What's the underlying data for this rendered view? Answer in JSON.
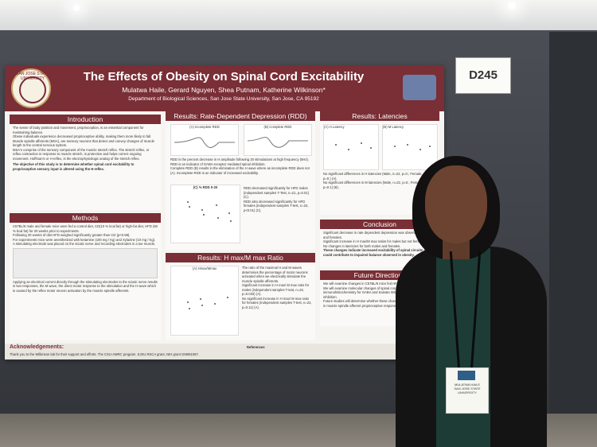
{
  "booth_sign": "D245",
  "poster": {
    "logo_text": "SAN JOSE STATE UNIVERSITY",
    "title": "The Effects of Obesity on Spinal Cord Excitability",
    "authors": "Mulatwa Haile, Gerard Nguyen, Shea Putnam, Katherine Wilkinson*",
    "department": "Department of Biological Sciences, San Jose State University, San Jose, CA 95192",
    "sections": {
      "introduction": "Introduction",
      "methods": "Methods",
      "rdd": "Results: Rate-Dependent Depression (RDD)",
      "hmax": "Results: H max/M max Ratio",
      "latencies": "Results: Latencies",
      "conclusion": "Conclusion",
      "future": "Future Directions",
      "ack": "Acknowledgements:"
    },
    "intro_text": [
      "The sense of body position and movement, proprioception, is an essential component for maintaining balance.",
      "Obese individuals experience decreased proprioceptive ability, making them more likely to fall.",
      "Muscle spindle afferents (MSA), are sensory neurons that detect and convey changes of muscle length to the central nervous system.",
      "MSA's comprise of the sensory component of the muscle stretch reflex. The stretch reflex, or reflex contraction in response to muscle stretch, is protective and helps correct ongoing movement. Hoffman's or H-reflex, is the electrophysiologic analog of the stretch reflex."
    ],
    "objective": "The objective of this study is to determine whether spinal cord excitability to proprioceptive sensory input is altered using the H-reflex.",
    "methods_text": [
      "C57BL/6 male and female mice were fed a control diet, CD(10 % kcal fat) or high-fat diet, HFD (60 % kcal fat) for 20 weeks prior to experiments.",
      "Following 20 weeks of diet HFD weighed significantly greater than CD (p<0.98).",
      "For experiments mice were anesthetized with ketamine (100 mg / Kg) and Xylazine (10 mg / Kg). A stimulating electrode was placed on the sciatic nerve and recording electrodes in a toe muscle.",
      "Applying an electrical current directly through the stimulating electrodes to the sciatic nerve results in two responses, the M wave, the direct motor response to the stimulation and the H wave which is caused by the reflex motor neuron activation by the muscle spindle afferents."
    ],
    "rdd_plot_labels": [
      "(A) Incomplete RDD",
      "(B) Complete RDD"
    ],
    "rdd_text": [
      "RDD is the percent decrease in H amplitude following 20 stimulations at high frequency (5Hz).",
      "RDD is an indicator of GABA-receptor mediated spinal inhibition.",
      "Complete RDD (B) results in the elimination of the H wave where as incomplete RDD does not (A). Incomplete RDD is an indicator of increased excitability."
    ],
    "rdd_chart_label": "(C) % RDD 0-20",
    "rdd_bullets": [
      "RDD decreased significantly for HFD males (independent samples T-Test, n=21, p=0.01) (C).",
      "RDD also decreased significantly for HFD females (independent samples T-test, n=24, p<0.01) (C)."
    ],
    "hmax_chart_label": "(A) Hmax/Mmax",
    "hmax_text": [
      "The ratio of the maximal H and M waves determines the percentage of motor neurons activated when we electrically stimulate the muscle spindle afferents.",
      "Significant increase in H max/ M max ratio for males (independent samples T-test, n=22, p=0.033) (A).",
      "No significant increase in H max/ M max ratio for females (independent samples T-test, n=22, p=0.11) (A)."
    ],
    "latency_labels": [
      "(A) H Latency",
      "(B) M Latency"
    ],
    "latency_text": [
      "No significant differences in H latencies (Male, n=22, p=0.; Female, n=22, p=0.) (A).",
      "No significant differences in M latencies (Male, n=22, p=0.; Female, n=22, p=0.1) (B)."
    ],
    "conclusion_text": [
      "Significant decrease in rate dependent depression was observed in males and females.",
      "Significant increase in H max/M max ratios for males but not females.",
      "No changes in latencies for both males and females.",
      "These changes indicate increased excitability of spinal circuits and could contribute to impaired balance observed in obesity."
    ],
    "future_text": [
      "We will examine changes in C57BL/6 mice fed HFD for 10 and 15 weeks.",
      "We will examine molecular changes of spinal cord samples collected via immunohistochemistry for GABA and Kainate MSA receptors for spinal inhibition.",
      "Future studies will determine whether these changes are due to alterations in muscle spindle afferent proprioceptive responses."
    ],
    "ack_text": "Thank you to the Wilkinson lab for their support and efforts. The CSU-AMRC program. SJSU RSCA grant, NIH grant GM081097.",
    "references_label": "References"
  },
  "badge": {
    "name": "MULATWA HAILE",
    "org": "SAN JOSE STATE UNIVERSITY"
  }
}
